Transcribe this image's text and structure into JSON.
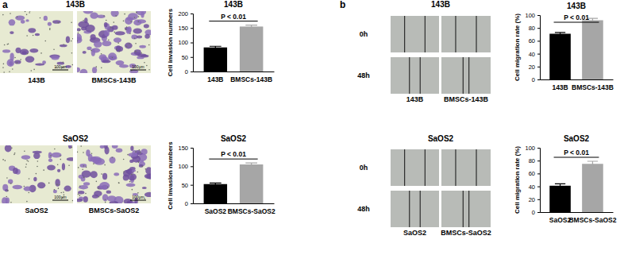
{
  "chart_data": [
    {
      "type": "bar",
      "title": "143B",
      "ylabel": "Cell invasion numbers",
      "categories": [
        "143B",
        "BMSCs-143B"
      ],
      "values": [
        83,
        155
      ],
      "errors": [
        4,
        5
      ],
      "colors": [
        "#000000",
        "#a6a6a6"
      ],
      "ylim": [
        0,
        200
      ],
      "yticks": [
        0,
        50,
        100,
        150,
        200
      ],
      "annotation": "P < 0.01"
    },
    {
      "type": "bar",
      "title": "SaOS2",
      "ylabel": "Cell invasion numbers",
      "categories": [
        "SaOS2",
        "BMSCs-SaOS2"
      ],
      "values": [
        52,
        105
      ],
      "errors": [
        3,
        4
      ],
      "colors": [
        "#000000",
        "#a6a6a6"
      ],
      "ylim": [
        0,
        150
      ],
      "yticks": [
        0,
        50,
        100,
        150
      ],
      "annotation": "P < 0.01"
    },
    {
      "type": "bar",
      "title": "143B",
      "ylabel": "Cell migration rate (%)",
      "categories": [
        "143B",
        "BMSCs-143B"
      ],
      "values": [
        71,
        92
      ],
      "errors": [
        2,
        3
      ],
      "colors": [
        "#000000",
        "#a6a6a6"
      ],
      "ylim": [
        0,
        100
      ],
      "yticks": [
        0,
        20,
        40,
        60,
        80,
        100
      ],
      "annotation": "P < 0.01"
    },
    {
      "type": "bar",
      "title": "SaOS2",
      "ylabel": "Cell migration rate (%)",
      "categories": [
        "SaOS2",
        "BMSCs-SaOS2"
      ],
      "values": [
        41,
        75
      ],
      "errors": [
        3,
        4
      ],
      "colors": [
        "#000000",
        "#a6a6a6"
      ],
      "ylim": [
        0,
        100
      ],
      "yticks": [
        0,
        20,
        40,
        60,
        80,
        100
      ],
      "annotation": "P < 0.01"
    }
  ],
  "figure": {
    "panels": [
      {
        "label": "a",
        "rows": [
          {
            "title": "143B",
            "images": [
              {
                "caption": "143B",
                "scale_bar": "100μm"
              },
              {
                "caption": "BMSCs-143B",
                "scale_bar": "100μm"
              }
            ]
          },
          {
            "title": "SaOS2",
            "images": [
              {
                "caption": "SaOS2",
                "scale_bar": "100μm"
              },
              {
                "caption": "BMSCs-SaOS2",
                "scale_bar": "100μm"
              }
            ]
          }
        ]
      },
      {
        "label": "b",
        "rows": [
          {
            "title": "143B",
            "time_points": [
              "0h",
              "48h"
            ],
            "images": [
              {
                "caption": "143B"
              },
              {
                "caption": "BMSCs-143B"
              }
            ]
          },
          {
            "title": "SaOS2",
            "time_points": [
              "0h",
              "48h"
            ],
            "images": [
              {
                "caption": "SaOS2"
              },
              {
                "caption": "BMSCs-SaOS2"
              }
            ]
          }
        ]
      }
    ]
  }
}
